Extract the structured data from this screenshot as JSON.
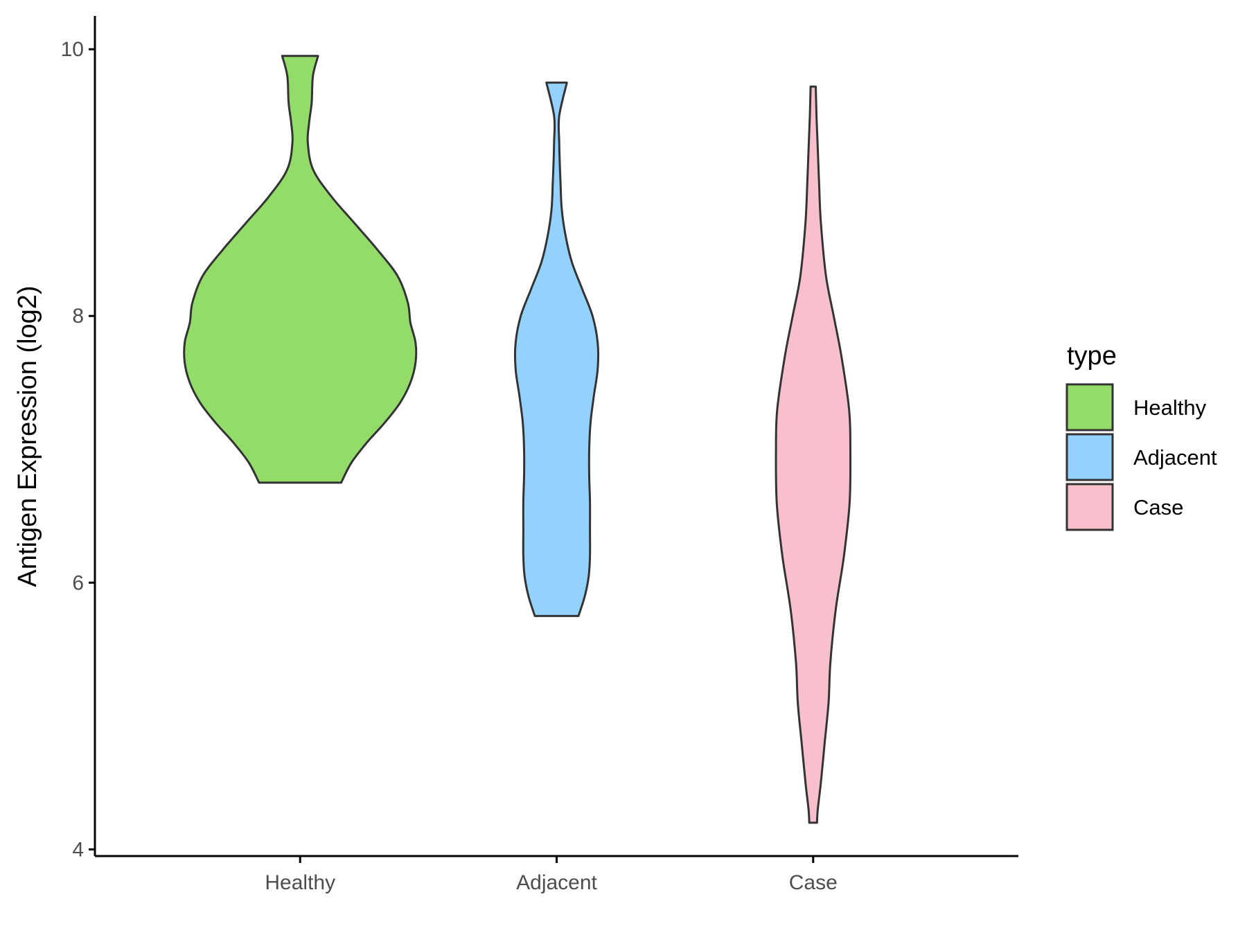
{
  "chart_data": {
    "type": "violin",
    "title": "",
    "xlabel": "",
    "ylabel": "Antigen Expression (log2)",
    "ylim": [
      3.95,
      10.25
    ],
    "yticks": [
      4,
      6,
      8,
      10
    ],
    "grid": false,
    "legend": {
      "title": "type",
      "placement": "right",
      "entries": [
        {
          "label": "Healthy",
          "color": "#93DC6A"
        },
        {
          "label": "Adjacent",
          "color": "#93D2FF"
        },
        {
          "label": "Case",
          "color": "#F7C0CC"
        }
      ]
    },
    "categories": [
      "Healthy",
      "Adjacent",
      "Case"
    ],
    "series": [
      {
        "category": "Healthy",
        "color": "#93DC6A",
        "min": 6.75,
        "max": 9.95,
        "profile": [
          [
            6.75,
            0.16
          ],
          [
            6.9,
            0.2
          ],
          [
            7.05,
            0.26
          ],
          [
            7.2,
            0.33
          ],
          [
            7.35,
            0.39
          ],
          [
            7.5,
            0.43
          ],
          [
            7.65,
            0.45
          ],
          [
            7.8,
            0.45
          ],
          [
            7.95,
            0.43
          ],
          [
            8.1,
            0.42
          ],
          [
            8.3,
            0.38
          ],
          [
            8.5,
            0.3
          ],
          [
            8.7,
            0.21
          ],
          [
            8.9,
            0.12
          ],
          [
            9.1,
            0.05
          ],
          [
            9.3,
            0.03
          ],
          [
            9.45,
            0.035
          ],
          [
            9.6,
            0.045
          ],
          [
            9.8,
            0.05
          ],
          [
            9.95,
            0.07
          ]
        ]
      },
      {
        "category": "Adjacent",
        "color": "#93D2FF",
        "min": 5.75,
        "max": 9.75,
        "profile": [
          [
            5.75,
            0.085
          ],
          [
            5.9,
            0.11
          ],
          [
            6.05,
            0.125
          ],
          [
            6.2,
            0.13
          ],
          [
            6.4,
            0.13
          ],
          [
            6.6,
            0.13
          ],
          [
            6.8,
            0.127
          ],
          [
            7.0,
            0.127
          ],
          [
            7.2,
            0.132
          ],
          [
            7.4,
            0.145
          ],
          [
            7.6,
            0.16
          ],
          [
            7.8,
            0.16
          ],
          [
            8.0,
            0.14
          ],
          [
            8.2,
            0.1
          ],
          [
            8.4,
            0.06
          ],
          [
            8.6,
            0.035
          ],
          [
            8.8,
            0.02
          ],
          [
            9.0,
            0.015
          ],
          [
            9.3,
            0.01
          ],
          [
            9.5,
            0.01
          ],
          [
            9.75,
            0.04
          ]
        ]
      },
      {
        "category": "Case",
        "color": "#F7C0CC",
        "min": 4.2,
        "max": 9.72,
        "profile": [
          [
            4.2,
            0.015
          ],
          [
            4.3,
            0.018
          ],
          [
            4.5,
            0.03
          ],
          [
            4.8,
            0.045
          ],
          [
            5.1,
            0.06
          ],
          [
            5.4,
            0.067
          ],
          [
            5.8,
            0.088
          ],
          [
            6.2,
            0.12
          ],
          [
            6.6,
            0.142
          ],
          [
            7.0,
            0.145
          ],
          [
            7.3,
            0.14
          ],
          [
            7.7,
            0.11
          ],
          [
            8.0,
            0.08
          ],
          [
            8.3,
            0.05
          ],
          [
            8.7,
            0.03
          ],
          [
            9.0,
            0.023
          ],
          [
            9.3,
            0.017
          ],
          [
            9.5,
            0.013
          ],
          [
            9.72,
            0.01
          ]
        ]
      }
    ]
  }
}
